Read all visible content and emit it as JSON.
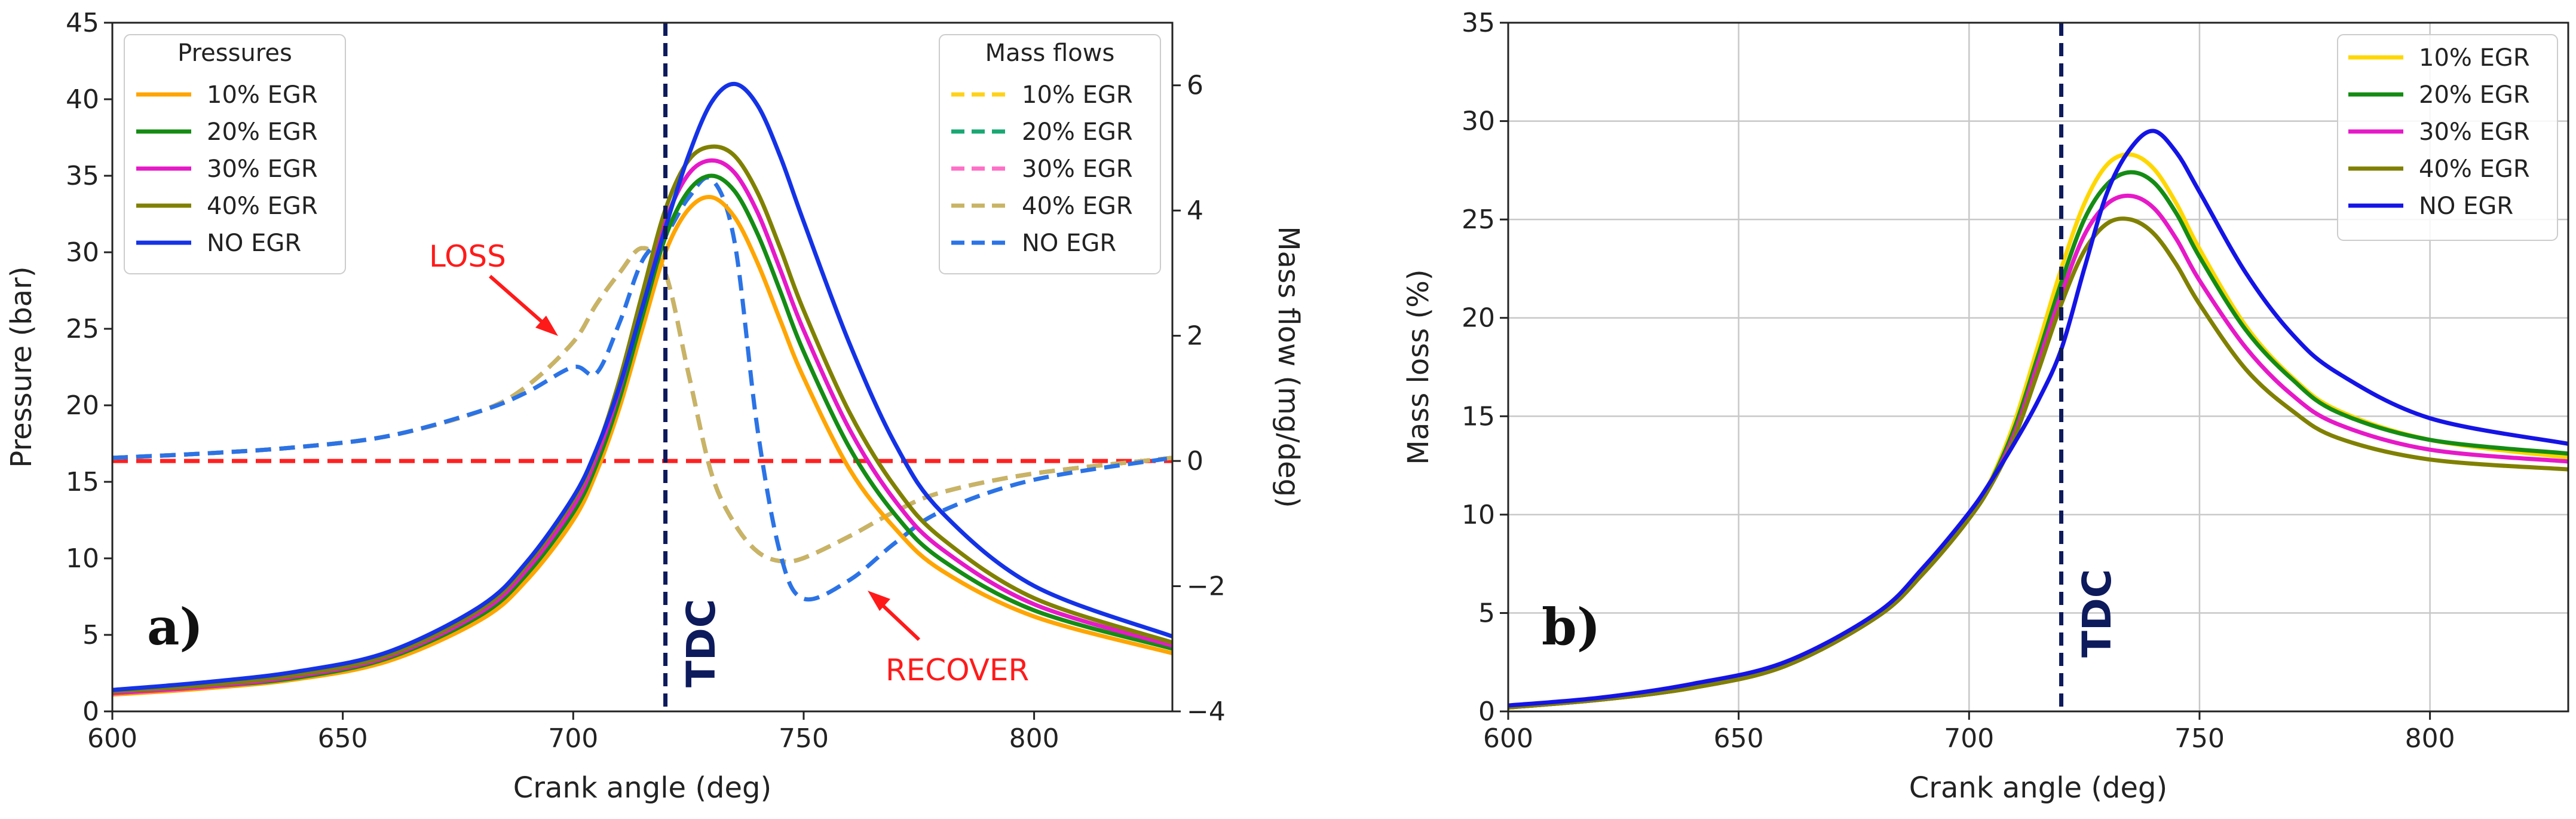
{
  "chart_data": [
    {
      "type": "line",
      "panel_label": "a)",
      "xlabel": "Crank angle (deg)",
      "ylabel": "Pressure (bar)",
      "ylabel_right": "Mass flow (mg/deg)",
      "xlim": [
        600,
        830
      ],
      "ylim": [
        0,
        45
      ],
      "ylim_right": [
        -4,
        7
      ],
      "xticks": [
        600,
        650,
        700,
        750,
        800
      ],
      "yticks": [
        0,
        5,
        10,
        15,
        20,
        25,
        30,
        35,
        40,
        45
      ],
      "yticks_right": [
        -4,
        -2,
        0,
        2,
        4,
        6
      ],
      "grid": false,
      "legend_pressures_title": "Pressures",
      "legend_massflows_title": "Mass flows",
      "x": [
        600,
        620,
        640,
        660,
        680,
        690,
        700,
        705,
        710,
        715,
        720,
        725,
        730,
        735,
        740,
        745,
        750,
        760,
        770,
        780,
        800,
        830
      ],
      "series": [
        {
          "name": "10% EGR",
          "axis": "left",
          "style": "solid",
          "color": "#ffa500",
          "values": [
            1.1,
            1.5,
            2.1,
            3.3,
            6.0,
            8.6,
            12.5,
            15.6,
            19.8,
            25.0,
            30.0,
            32.8,
            33.6,
            32.3,
            29.3,
            25.5,
            21.8,
            15.8,
            11.9,
            9.2,
            6.2,
            3.8
          ]
        },
        {
          "name": "20% EGR",
          "axis": "left",
          "style": "solid",
          "color": "#148c14",
          "values": [
            1.2,
            1.6,
            2.2,
            3.5,
            6.3,
            9.0,
            13.0,
            16.1,
            20.4,
            25.8,
            31.0,
            34.0,
            35.0,
            34.0,
            31.2,
            27.4,
            23.5,
            17.2,
            12.8,
            9.9,
            6.6,
            4.1
          ]
        },
        {
          "name": "30% EGR",
          "axis": "left",
          "style": "solid",
          "color": "#e619c8",
          "values": [
            1.2,
            1.6,
            2.3,
            3.6,
            6.5,
            9.3,
            13.4,
            16.6,
            21.0,
            26.6,
            32.0,
            35.1,
            36.0,
            35.2,
            32.6,
            28.8,
            24.9,
            18.4,
            13.7,
            10.6,
            7.0,
            4.3
          ]
        },
        {
          "name": "40% EGR",
          "axis": "left",
          "style": "solid",
          "color": "#808000",
          "values": [
            1.3,
            1.7,
            2.4,
            3.7,
            6.7,
            9.6,
            13.8,
            17.0,
            21.6,
            27.3,
            32.8,
            36.0,
            36.9,
            36.3,
            33.9,
            30.2,
            26.2,
            19.5,
            14.6,
            11.3,
            7.4,
            4.5
          ]
        },
        {
          "name": "NO EGR",
          "axis": "left",
          "style": "solid",
          "color": "#1432e6",
          "values": [
            1.4,
            1.9,
            2.6,
            3.9,
            6.9,
            9.8,
            14.0,
            17.1,
            21.2,
            26.4,
            31.6,
            36.3,
            39.8,
            41.0,
            39.6,
            36.2,
            32.0,
            24.0,
            17.4,
            13.0,
            8.2,
            4.9
          ]
        },
        {
          "name": "10% EGR",
          "axis": "right",
          "style": "dashed",
          "color": "#ffd21a",
          "values": [
            0.05,
            0.12,
            0.22,
            0.4,
            0.8,
            1.2,
            1.9,
            2.5,
            3.0,
            3.4,
            3.0,
            1.4,
            -0.2,
            -1.0,
            -1.45,
            -1.6,
            -1.55,
            -1.2,
            -0.8,
            -0.5,
            -0.2,
            0.05
          ]
        },
        {
          "name": "20% EGR",
          "axis": "right",
          "style": "dashed",
          "color": "#19a873",
          "values": [
            0.05,
            0.12,
            0.22,
            0.4,
            0.8,
            1.2,
            1.9,
            2.5,
            3.0,
            3.4,
            3.0,
            1.4,
            -0.2,
            -1.0,
            -1.45,
            -1.6,
            -1.55,
            -1.2,
            -0.8,
            -0.5,
            -0.2,
            0.05
          ]
        },
        {
          "name": "30% EGR",
          "axis": "right",
          "style": "dashed",
          "color": "#ff6ec7",
          "values": [
            0.05,
            0.12,
            0.22,
            0.4,
            0.8,
            1.2,
            1.9,
            2.5,
            3.0,
            3.4,
            3.0,
            1.4,
            -0.2,
            -1.0,
            -1.45,
            -1.6,
            -1.55,
            -1.2,
            -0.8,
            -0.5,
            -0.2,
            0.05
          ]
        },
        {
          "name": "40% EGR",
          "axis": "right",
          "style": "dashed",
          "color": "#c8b464",
          "values": [
            0.05,
            0.12,
            0.22,
            0.4,
            0.8,
            1.2,
            1.9,
            2.5,
            3.0,
            3.4,
            3.0,
            1.4,
            -0.2,
            -1.0,
            -1.45,
            -1.6,
            -1.55,
            -1.2,
            -0.8,
            -0.5,
            -0.2,
            0.05
          ]
        },
        {
          "name": "NO EGR",
          "axis": "right",
          "style": "dashed",
          "color": "#2b73e6",
          "values": [
            0.05,
            0.12,
            0.22,
            0.4,
            0.8,
            1.1,
            1.5,
            1.4,
            2.2,
            3.2,
            3.6,
            4.2,
            4.5,
            3.5,
            0.5,
            -1.5,
            -2.2,
            -1.9,
            -1.3,
            -0.8,
            -0.3,
            0.05
          ]
        }
      ],
      "hline": {
        "value": 0,
        "axis": "right",
        "style": "dashed",
        "color": "#ff2020"
      },
      "vline": {
        "x": 720,
        "label": "TDC",
        "color": "#0d1a5c"
      },
      "annotations": [
        {
          "text": "LOSS",
          "color": "#ff2020",
          "arrow_to": [
            700,
            22.5
          ]
        },
        {
          "text": "RECOVER",
          "color": "#ff2020",
          "arrow_to": [
            755,
            7.5
          ]
        }
      ]
    },
    {
      "type": "line",
      "panel_label": "b)",
      "xlabel": "Crank angle (deg)",
      "ylabel": "Mass loss (%)",
      "xlim": [
        600,
        830
      ],
      "ylim": [
        0,
        35
      ],
      "xticks": [
        600,
        650,
        700,
        750,
        800
      ],
      "yticks": [
        0,
        5,
        10,
        15,
        20,
        25,
        30,
        35
      ],
      "grid": true,
      "x": [
        600,
        620,
        640,
        660,
        680,
        690,
        700,
        705,
        710,
        715,
        720,
        725,
        730,
        735,
        740,
        745,
        750,
        760,
        770,
        780,
        800,
        830
      ],
      "series": [
        {
          "name": "10% EGR",
          "color": "#ffd700",
          "values": [
            0.2,
            0.6,
            1.2,
            2.3,
            4.8,
            7.0,
            9.8,
            11.9,
            14.8,
            18.6,
            22.5,
            25.8,
            27.8,
            28.3,
            27.6,
            25.8,
            23.5,
            19.6,
            17.0,
            15.3,
            13.8,
            12.9
          ]
        },
        {
          "name": "20% EGR",
          "color": "#148c14",
          "values": [
            0.2,
            0.6,
            1.2,
            2.3,
            4.8,
            7.0,
            9.8,
            11.8,
            14.5,
            18.1,
            21.8,
            25.0,
            26.8,
            27.4,
            26.9,
            25.3,
            23.1,
            19.4,
            16.9,
            15.2,
            13.8,
            13.1
          ]
        },
        {
          "name": "30% EGR",
          "color": "#e619c8",
          "values": [
            0.2,
            0.6,
            1.2,
            2.3,
            4.8,
            7.0,
            9.8,
            11.7,
            14.2,
            17.7,
            21.2,
            24.2,
            25.8,
            26.2,
            25.6,
            24.0,
            21.9,
            18.5,
            16.1,
            14.6,
            13.3,
            12.7
          ]
        },
        {
          "name": "40% EGR",
          "color": "#808000",
          "values": [
            0.2,
            0.6,
            1.2,
            2.3,
            4.8,
            7.0,
            9.8,
            11.6,
            14.0,
            17.3,
            20.7,
            23.4,
            24.8,
            25.0,
            24.3,
            22.7,
            20.7,
            17.4,
            15.3,
            13.9,
            12.8,
            12.3
          ]
        },
        {
          "name": "NO EGR",
          "color": "#1414e6",
          "values": [
            0.3,
            0.7,
            1.4,
            2.5,
            5.0,
            7.3,
            10.1,
            11.8,
            13.7,
            15.8,
            18.4,
            22.5,
            26.4,
            28.6,
            29.5,
            28.4,
            26.4,
            22.3,
            19.2,
            17.2,
            14.9,
            13.6
          ]
        }
      ],
      "vline": {
        "x": 720,
        "label": "TDC",
        "color": "#0d1a5c"
      }
    }
  ]
}
